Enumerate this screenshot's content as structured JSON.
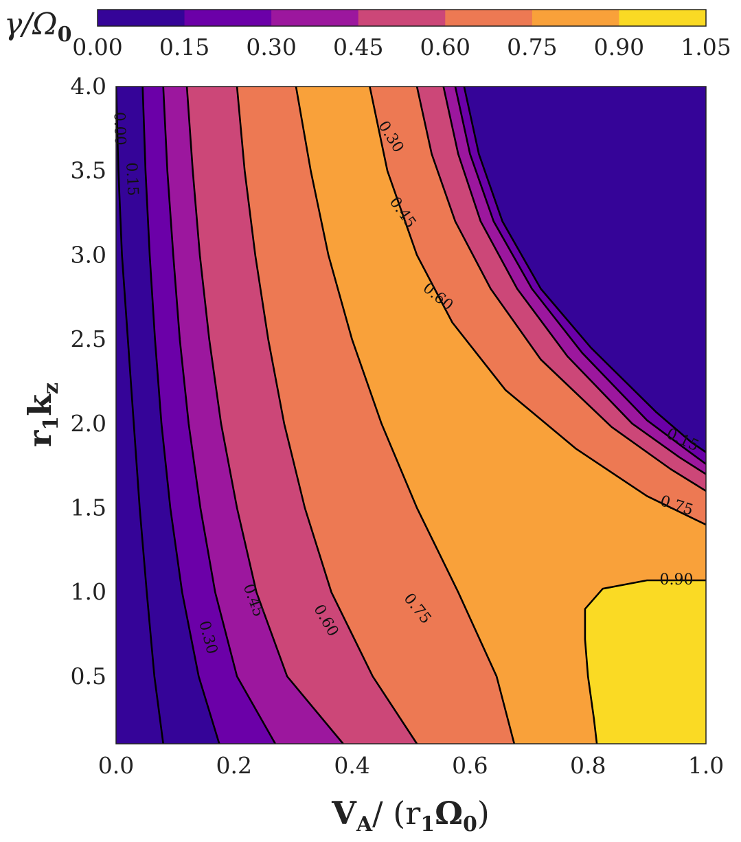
{
  "chart_data": {
    "type": "contourf",
    "colorbar": {
      "label": "γ/Ω",
      "label_sub": "0",
      "levels": [
        0.0,
        0.15,
        0.3,
        0.45,
        0.6,
        0.75,
        0.9,
        1.05
      ],
      "tick_labels": [
        "0.00",
        "0.15",
        "0.30",
        "0.45",
        "0.60",
        "0.75",
        "0.90",
        "1.05"
      ],
      "colors": [
        "#350498",
        "#6b00a8",
        "#9c179e",
        "#cc4778",
        "#ed7953",
        "#f9a13a",
        "#fada24"
      ]
    },
    "x_axis": {
      "label": "V",
      "label_sub": "A",
      "label_rest": "/ (r",
      "label_rest_sub": "1",
      "label_rest2": "Ω",
      "label_rest2_sub": "0",
      "label_close": ")",
      "range": [
        0.0,
        1.0
      ],
      "ticks": [
        0.0,
        0.2,
        0.4,
        0.6,
        0.8,
        1.0
      ],
      "tick_labels": [
        "0.0",
        "0.2",
        "0.4",
        "0.6",
        "0.8",
        "1.0"
      ]
    },
    "y_axis": {
      "label": "r",
      "label_sub": "1",
      "label_rest": "k",
      "label_rest_sub": "z",
      "range": [
        0.1,
        4.0
      ],
      "ticks": [
        0.5,
        1.0,
        1.5,
        2.0,
        2.5,
        3.0,
        3.5,
        4.0
      ],
      "tick_labels": [
        "0.5",
        "1.0",
        "1.5",
        "2.0",
        "2.5",
        "3.0",
        "3.5",
        "4.0"
      ]
    },
    "contours": [
      {
        "level": 0.0,
        "points": [
          [
            0.0,
            4.0
          ],
          [
            0.004,
            3.5
          ],
          [
            0.01,
            3.0
          ],
          [
            0.02,
            2.5
          ],
          [
            0.03,
            2.0
          ],
          [
            0.04,
            1.5
          ],
          [
            0.052,
            1.0
          ],
          [
            0.065,
            0.5
          ],
          [
            0.08,
            0.1
          ]
        ]
      },
      {
        "level": 0.15,
        "points": [
          [
            0.045,
            4.0
          ],
          [
            0.05,
            3.5
          ],
          [
            0.057,
            3.0
          ],
          [
            0.066,
            2.5
          ],
          [
            0.077,
            2.0
          ],
          [
            0.092,
            1.5
          ],
          [
            0.112,
            1.0
          ],
          [
            0.14,
            0.5
          ],
          [
            0.175,
            0.1
          ]
        ]
      },
      {
        "level": 0.3,
        "points": [
          [
            0.08,
            4.0
          ],
          [
            0.087,
            3.5
          ],
          [
            0.097,
            3.0
          ],
          [
            0.108,
            2.5
          ],
          [
            0.123,
            2.0
          ],
          [
            0.143,
            1.5
          ],
          [
            0.168,
            1.0
          ],
          [
            0.205,
            0.5
          ],
          [
            0.27,
            0.1
          ]
        ]
      },
      {
        "level": 0.45,
        "points": [
          [
            0.12,
            4.0
          ],
          [
            0.13,
            3.5
          ],
          [
            0.142,
            3.0
          ],
          [
            0.158,
            2.5
          ],
          [
            0.178,
            2.0
          ],
          [
            0.205,
            1.5
          ],
          [
            0.238,
            1.0
          ],
          [
            0.29,
            0.5
          ],
          [
            0.385,
            0.1
          ]
        ]
      },
      {
        "level": 0.6,
        "points": [
          [
            0.205,
            4.0
          ],
          [
            0.218,
            3.5
          ],
          [
            0.236,
            3.0
          ],
          [
            0.258,
            2.5
          ],
          [
            0.285,
            2.0
          ],
          [
            0.32,
            1.5
          ],
          [
            0.365,
            1.0
          ],
          [
            0.435,
            0.5
          ],
          [
            0.51,
            0.1
          ]
        ]
      },
      {
        "level": 0.75,
        "points": [
          [
            0.305,
            4.0
          ],
          [
            0.33,
            3.5
          ],
          [
            0.36,
            3.0
          ],
          [
            0.4,
            2.5
          ],
          [
            0.45,
            2.0
          ],
          [
            0.51,
            1.5
          ],
          [
            0.58,
            1.0
          ],
          [
            0.645,
            0.5
          ],
          [
            0.675,
            0.1
          ]
        ]
      },
      {
        "level": 0.75,
        "points": [
          [
            0.43,
            4.0
          ],
          [
            0.46,
            3.5
          ],
          [
            0.51,
            3.0
          ],
          [
            0.57,
            2.6
          ],
          [
            0.66,
            2.2
          ],
          [
            0.78,
            1.85
          ],
          [
            0.9,
            1.57
          ],
          [
            1.0,
            1.4
          ]
        ]
      },
      {
        "level": 0.6,
        "points": [
          [
            0.51,
            4.0
          ],
          [
            0.535,
            3.6
          ],
          [
            0.575,
            3.2
          ],
          [
            0.635,
            2.8
          ],
          [
            0.72,
            2.38
          ],
          [
            0.84,
            1.98
          ],
          [
            0.94,
            1.73
          ],
          [
            1.0,
            1.6
          ]
        ]
      },
      {
        "level": 0.45,
        "points": [
          [
            0.555,
            4.0
          ],
          [
            0.58,
            3.6
          ],
          [
            0.618,
            3.2
          ],
          [
            0.68,
            2.8
          ],
          [
            0.765,
            2.4
          ],
          [
            0.875,
            2.0
          ],
          [
            0.955,
            1.8
          ],
          [
            1.0,
            1.7
          ]
        ]
      },
      {
        "level": 0.3,
        "points": [
          [
            0.575,
            4.0
          ],
          [
            0.6,
            3.6
          ],
          [
            0.64,
            3.2
          ],
          [
            0.705,
            2.8
          ],
          [
            0.79,
            2.42
          ],
          [
            0.9,
            2.02
          ],
          [
            0.965,
            1.85
          ],
          [
            1.0,
            1.76
          ]
        ]
      },
      {
        "level": 0.15,
        "points": [
          [
            0.59,
            4.0
          ],
          [
            0.615,
            3.6
          ],
          [
            0.655,
            3.2
          ],
          [
            0.72,
            2.8
          ],
          [
            0.805,
            2.45
          ],
          [
            0.915,
            2.07
          ],
          [
            0.975,
            1.89
          ],
          [
            1.0,
            1.83
          ]
        ]
      },
      {
        "level": 0.9,
        "points": [
          [
            1.0,
            1.07
          ],
          [
            0.9,
            1.07
          ],
          [
            0.825,
            1.02
          ],
          [
            0.795,
            0.9
          ],
          [
            0.795,
            0.72
          ],
          [
            0.8,
            0.5
          ],
          [
            0.81,
            0.25
          ],
          [
            0.815,
            0.1
          ]
        ]
      }
    ],
    "contour_labels": [
      {
        "text": "0.00",
        "x": 0.005,
        "y": 3.75,
        "angle": 88
      },
      {
        "text": "0.15",
        "x": 0.026,
        "y": 3.45,
        "angle": 87
      },
      {
        "text": "0.30",
        "x": 0.155,
        "y": 0.73,
        "angle": 75
      },
      {
        "text": "0.45",
        "x": 0.232,
        "y": 0.95,
        "angle": 70
      },
      {
        "text": "0.60",
        "x": 0.355,
        "y": 0.83,
        "angle": 60
      },
      {
        "text": "0.75",
        "x": 0.51,
        "y": 0.9,
        "angle": 52
      },
      {
        "text": "0.30",
        "x": 0.465,
        "y": 3.7,
        "angle": 58
      },
      {
        "text": "0.45",
        "x": 0.485,
        "y": 3.25,
        "angle": 55
      },
      {
        "text": "0.60",
        "x": 0.545,
        "y": 2.75,
        "angle": 40
      },
      {
        "text": "0.75",
        "x": 0.95,
        "y": 1.51,
        "angle": 18
      },
      {
        "text": "0.90",
        "x": 0.95,
        "y": 1.07,
        "angle": 0
      },
      {
        "text": "0.15",
        "x": 0.96,
        "y": 1.9,
        "angle": 25
      }
    ]
  }
}
